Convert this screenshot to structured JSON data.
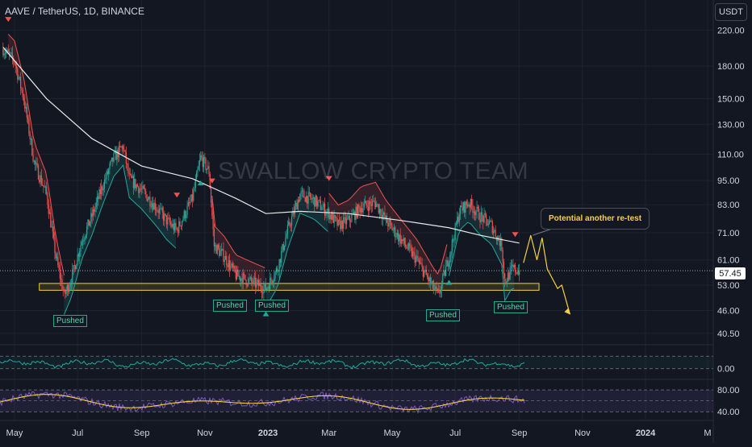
{
  "header": {
    "symbol_title": "AAVE / TetherUS, 1D, BINANCE",
    "currency_button": "USDT"
  },
  "watermark": "SWALLOW CRYPTO TEAM",
  "annotations": {
    "callout": "Potential another re-test",
    "pushed_labels": [
      "Pushed",
      "Pushed",
      "Pushed",
      "Pushed",
      "Pushed"
    ]
  },
  "last_price": "57.45",
  "colors": {
    "background": "#131722",
    "up": "#26a69a",
    "down": "#ef5350",
    "ma": "#ffffff",
    "support_zone": "#f6d33d",
    "projection": "#f6d33d",
    "oscillator_line": "#7e57c2",
    "oscillator_signal": "#f6d33d"
  },
  "chart_data": [
    {
      "type": "candlestick",
      "title": "AAVE / TetherUS, 1D, BINANCE",
      "x_tick_labels": [
        "May",
        "Jul",
        "Sep",
        "Nov",
        "2023",
        "Mar",
        "May",
        "Jul",
        "Sep",
        "Nov",
        "2024",
        "M"
      ],
      "y_scale": "log",
      "y_tick_labels": [
        "220.00",
        "180.00",
        "150.00",
        "130.00",
        "110.00",
        "95.00",
        "83.00",
        "71.00",
        "61.00",
        "53.00",
        "46.00",
        "40.50"
      ],
      "ylim": [
        38,
        240
      ],
      "series": [
        {
          "name": "",
          "kind": "price_path",
          "x": [
            "2022-04-20",
            "2022-05-01",
            "2022-05-10",
            "2022-05-20",
            "2022-06-01",
            "2022-06-10",
            "2022-06-18",
            "2022-06-25",
            "2022-07-05",
            "2022-07-15",
            "2022-07-25",
            "2022-08-05",
            "2022-08-14",
            "2022-08-20",
            "2022-09-01",
            "2022-09-15",
            "2022-09-25",
            "2022-10-05",
            "2022-10-20",
            "2022-10-28",
            "2022-11-05",
            "2022-11-10",
            "2022-11-20",
            "2022-12-01",
            "2022-12-15",
            "2022-12-30",
            "2023-01-10",
            "2023-01-20",
            "2023-02-01",
            "2023-02-15",
            "2023-03-01",
            "2023-03-10",
            "2023-03-20",
            "2023-04-01",
            "2023-04-15",
            "2023-04-25",
            "2023-05-10",
            "2023-05-25",
            "2023-06-10",
            "2023-06-15",
            "2023-06-25",
            "2023-07-05",
            "2023-07-14",
            "2023-07-25",
            "2023-08-05",
            "2023-08-15",
            "2023-08-18",
            "2023-08-25",
            "2023-09-01"
          ],
          "y": [
            198,
            185,
            150,
            105,
            88,
            62,
            50,
            55,
            68,
            78,
            92,
            108,
            115,
            96,
            90,
            82,
            76,
            72,
            86,
            108,
            100,
            66,
            62,
            56,
            54,
            52,
            58,
            72,
            88,
            85,
            79,
            74,
            76,
            82,
            84,
            76,
            68,
            61,
            52,
            50,
            62,
            80,
            84,
            78,
            74,
            66,
            54,
            58,
            57.45
          ]
        },
        {
          "name": "",
          "kind": "moving_average",
          "x": [
            "2022-04-20",
            "2022-06-01",
            "2022-07-15",
            "2022-09-01",
            "2022-10-20",
            "2022-12-01",
            "2022-12-30",
            "2023-02-01",
            "2023-03-20",
            "2023-05-10",
            "2023-06-25",
            "2023-07-25",
            "2023-09-01"
          ],
          "y": [
            200,
            150,
            120,
            103,
            96,
            86,
            79,
            80,
            79,
            76,
            73,
            70,
            67
          ]
        },
        {
          "name": "",
          "kind": "projection",
          "x": [
            "2023-09-05",
            "2023-09-12",
            "2023-09-18",
            "2023-09-23",
            "2023-09-28",
            "2023-10-08",
            "2023-10-12",
            "2023-10-20"
          ],
          "y": [
            60,
            70,
            61,
            69,
            58,
            52,
            53,
            45
          ]
        }
      ],
      "support_zone": {
        "from": 51.5,
        "to": 53.5
      },
      "signals": [
        {
          "type": "sell",
          "date": "2022-04-25"
        },
        {
          "type": "sell",
          "date": "2022-10-05"
        },
        {
          "type": "sell",
          "date": "2022-11-08"
        },
        {
          "type": "sell",
          "date": "2023-03-01"
        },
        {
          "type": "sell",
          "date": "2023-08-28"
        },
        {
          "type": "buy",
          "date": "2022-06-18"
        },
        {
          "type": "buy",
          "date": "2022-10-28"
        },
        {
          "type": "buy",
          "date": "2022-12-30"
        },
        {
          "type": "buy",
          "date": "2023-06-25"
        }
      ]
    },
    {
      "type": "line",
      "y_tick_labels": [
        "0.00"
      ],
      "ylim": [
        -20,
        50
      ],
      "series": [
        {
          "name": "",
          "kind": "oscillator",
          "values_range": [
            0,
            30
          ]
        }
      ]
    },
    {
      "type": "line",
      "y_tick_labels": [
        "80.00",
        "40.00"
      ],
      "ylim": [
        30,
        95
      ],
      "series": [
        {
          "name": "",
          "kind": "rsi",
          "values_range": [
            35,
            85
          ]
        },
        {
          "name": "",
          "kind": "rsi_signal",
          "values_range": [
            40,
            75
          ]
        }
      ]
    }
  ]
}
